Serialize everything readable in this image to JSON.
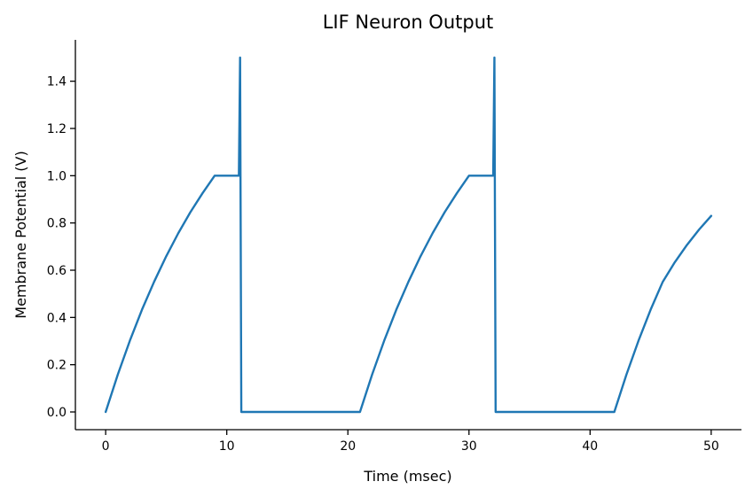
{
  "chart_data": {
    "type": "line",
    "title": "LIF Neuron Output",
    "xlabel": "Time (msec)",
    "ylabel": "Membrane Potential (V)",
    "xlim": [
      -2.5,
      52.5
    ],
    "ylim": [
      -0.075,
      1.575
    ],
    "xticks": [
      0,
      10,
      20,
      30,
      40,
      50
    ],
    "xtick_labels": [
      "0",
      "10",
      "20",
      "30",
      "40",
      "50"
    ],
    "yticks": [
      0.0,
      0.2,
      0.4,
      0.6,
      0.8,
      1.0,
      1.2,
      1.4
    ],
    "ytick_labels": [
      "0.0",
      "0.2",
      "0.4",
      "0.6",
      "0.8",
      "1.0",
      "1.2",
      "1.4"
    ],
    "grid": false,
    "series": [
      {
        "color": "#1f77b4",
        "x": [
          0,
          1,
          2,
          3,
          4,
          5,
          6,
          7,
          8,
          9,
          10,
          11,
          11.1,
          11.2,
          21,
          22,
          23,
          24,
          25,
          26,
          27,
          28,
          29,
          30,
          31,
          32,
          32.1,
          32.2,
          42,
          43,
          44,
          45,
          46,
          47,
          48,
          49,
          50
        ],
        "y": [
          0.0,
          0.158,
          0.302,
          0.433,
          0.551,
          0.659,
          0.757,
          0.846,
          0.926,
          1.0,
          1.0,
          1.0,
          1.5,
          0.0,
          0.0,
          0.158,
          0.302,
          0.433,
          0.551,
          0.659,
          0.757,
          0.846,
          0.926,
          1.0,
          1.0,
          1.0,
          1.5,
          0.0,
          0.0,
          0.158,
          0.302,
          0.433,
          0.551,
          0.634,
          0.707,
          0.772,
          0.83
        ]
      }
    ]
  }
}
